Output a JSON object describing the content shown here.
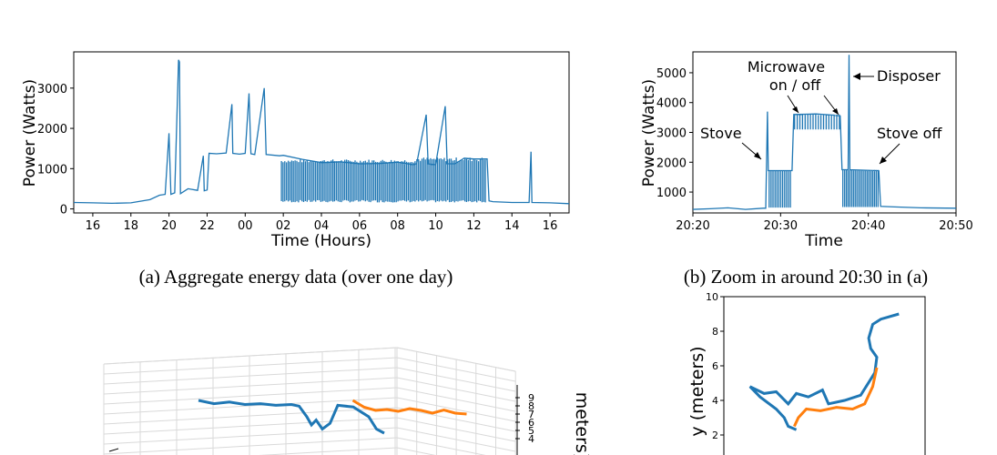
{
  "colors": {
    "blue": "#1f77b4",
    "orange": "#ff7f0e",
    "grid": "#d9d9d9",
    "axis": "#000000"
  },
  "chart_data": [
    {
      "id": "a",
      "type": "line",
      "caption": "(a) Aggregate energy data (over one day)",
      "xlabel": "Time (Hours)",
      "ylabel": "Power (Watts)",
      "xticks": [
        "16",
        "18",
        "20",
        "22",
        "00",
        "02",
        "04",
        "06",
        "08",
        "10",
        "12",
        "14",
        "16"
      ],
      "yticks": [
        0,
        1000,
        2000,
        3000
      ],
      "xlim": [
        15,
        41
      ],
      "ylim": [
        -100,
        3900
      ],
      "series": [
        {
          "color": "blue",
          "points": [
            [
              15,
              160
            ],
            [
              16,
              150
            ],
            [
              17,
              140
            ],
            [
              18,
              150
            ],
            [
              19,
              230
            ],
            [
              19.5,
              340
            ],
            [
              19.8,
              360
            ],
            [
              20,
              1880
            ],
            [
              20.1,
              360
            ],
            [
              20.3,
              400
            ],
            [
              20.5,
              3700
            ],
            [
              20.55,
              3650
            ],
            [
              20.6,
              380
            ],
            [
              21,
              500
            ],
            [
              21.5,
              460
            ],
            [
              21.8,
              1320
            ],
            [
              21.85,
              450
            ],
            [
              22,
              470
            ],
            [
              22.1,
              1380
            ],
            [
              22.5,
              1370
            ],
            [
              23,
              1390
            ],
            [
              23.3,
              2600
            ],
            [
              23.35,
              1380
            ],
            [
              23.7,
              1360
            ],
            [
              24,
              1380
            ],
            [
              24.2,
              2870
            ],
            [
              24.3,
              1370
            ],
            [
              24.5,
              1350
            ],
            [
              25,
              3000
            ],
            [
              25.1,
              1350
            ],
            [
              25.8,
              1320
            ],
            [
              26,
              1330
            ],
            [
              27,
              1230
            ],
            [
              28,
              1150
            ],
            [
              29,
              1170
            ],
            [
              30,
              1120
            ],
            [
              31,
              1130
            ],
            [
              32,
              1160
            ],
            [
              32.8,
              1100
            ],
            [
              33,
              1120
            ],
            [
              33.5,
              2340
            ],
            [
              33.6,
              1120
            ],
            [
              34,
              1100
            ],
            [
              34.5,
              2550
            ],
            [
              34.6,
              1120
            ],
            [
              35,
              1120
            ],
            [
              35.5,
              1260
            ],
            [
              36,
              1240
            ],
            [
              36.7,
              1240
            ],
            [
              36.8,
              200
            ],
            [
              37,
              180
            ],
            [
              38,
              160
            ],
            [
              38.9,
              160
            ],
            [
              39,
              1420
            ],
            [
              39.05,
              160
            ],
            [
              40,
              150
            ],
            [
              41,
              130
            ]
          ]
        }
      ]
    },
    {
      "id": "b",
      "type": "line",
      "caption": "(b) Zoom in around 20:30 in (a)",
      "xlabel": "Time",
      "ylabel": "Power (Watts)",
      "xticks": [
        "20:20",
        "20:30",
        "20:40",
        "20:50"
      ],
      "yticks": [
        1000,
        2000,
        3000,
        4000,
        5000
      ],
      "xlim": [
        20,
        50
      ],
      "ylim": [
        300,
        5700
      ],
      "annotations": [
        "Microwave\non / off",
        "Disposer",
        "Stove",
        "Stove off"
      ],
      "series": [
        {
          "color": "blue",
          "points": [
            [
              20,
              420
            ],
            [
              22,
              440
            ],
            [
              24,
              470
            ],
            [
              26,
              420
            ],
            [
              28,
              460
            ],
            [
              28.3,
              460
            ],
            [
              28.5,
              3700
            ],
            [
              28.6,
              1720
            ],
            [
              31,
              1720
            ],
            [
              31.3,
              1720
            ],
            [
              31.5,
              3600
            ],
            [
              34,
              3620
            ],
            [
              36,
              3580
            ],
            [
              36.8,
              3550
            ],
            [
              37,
              1750
            ],
            [
              37.7,
              1750
            ],
            [
              37.8,
              5600
            ],
            [
              37.9,
              1750
            ],
            [
              41,
              1720
            ],
            [
              41.2,
              1720
            ],
            [
              41.4,
              520
            ],
            [
              43,
              500
            ],
            [
              46,
              470
            ],
            [
              50,
              460
            ]
          ]
        }
      ]
    },
    {
      "id": "c",
      "type": "line",
      "caption": "",
      "zlabel": "meters)",
      "zticks": [
        9,
        8,
        7,
        6,
        5,
        4
      ],
      "series": [
        {
          "color": "blue",
          "points3d": [
            [
              0,
              0
            ],
            [
              1,
              0.4
            ],
            [
              2,
              0.2
            ],
            [
              3,
              0.5
            ],
            [
              4,
              0.4
            ],
            [
              5,
              0.6
            ],
            [
              6,
              0.5
            ],
            [
              6.5,
              0.7
            ],
            [
              7,
              2
            ],
            [
              7.3,
              3
            ],
            [
              7.6,
              2.4
            ],
            [
              8,
              3.5
            ],
            [
              8.5,
              2.8
            ],
            [
              9,
              0.6
            ],
            [
              10,
              0.8
            ],
            [
              11,
              2
            ],
            [
              11.5,
              3.5
            ],
            [
              12,
              4
            ]
          ]
        },
        {
          "color": "orange",
          "points3d": [
            [
              7,
              6
            ],
            [
              8,
              4.5
            ],
            [
              9,
              3.8
            ],
            [
              10,
              4
            ],
            [
              11,
              3.6
            ],
            [
              12,
              4.2
            ],
            [
              13,
              3.8
            ],
            [
              14,
              3.2
            ],
            [
              15,
              3.9
            ],
            [
              16,
              3.2
            ],
            [
              17,
              3.0
            ]
          ]
        }
      ]
    },
    {
      "id": "d",
      "type": "line",
      "caption": "",
      "ylabel": "y (meters)",
      "yticks": [
        2,
        4,
        6,
        8,
        10
      ],
      "ylim": [
        0,
        10
      ],
      "series": [
        {
          "color": "blue",
          "points": [
            [
              8.7,
              9
            ],
            [
              7.8,
              8.7
            ],
            [
              7.4,
              8.4
            ],
            [
              7.2,
              7.6
            ],
            [
              7.3,
              7
            ],
            [
              7.6,
              6.5
            ],
            [
              7.5,
              5.6
            ],
            [
              6.8,
              4.3
            ],
            [
              6.0,
              4.0
            ],
            [
              5.2,
              3.8
            ],
            [
              4.9,
              4.6
            ],
            [
              4.2,
              4.2
            ],
            [
              3.6,
              4.4
            ],
            [
              3.2,
              3.8
            ],
            [
              2.6,
              4.5
            ],
            [
              2.0,
              4.4
            ],
            [
              1.3,
              4.8
            ],
            [
              1.8,
              4.2
            ],
            [
              2.6,
              3.5
            ],
            [
              3.0,
              3.0
            ],
            [
              3.2,
              2.5
            ],
            [
              3.6,
              2.3
            ]
          ]
        },
        {
          "color": "orange",
          "points": [
            [
              7.6,
              5.9
            ],
            [
              7.4,
              4.8
            ],
            [
              7.0,
              3.8
            ],
            [
              6.4,
              3.5
            ],
            [
              5.6,
              3.6
            ],
            [
              4.8,
              3.4
            ],
            [
              4.1,
              3.5
            ],
            [
              3.7,
              3.0
            ],
            [
              3.5,
              2.5
            ]
          ]
        }
      ]
    }
  ]
}
